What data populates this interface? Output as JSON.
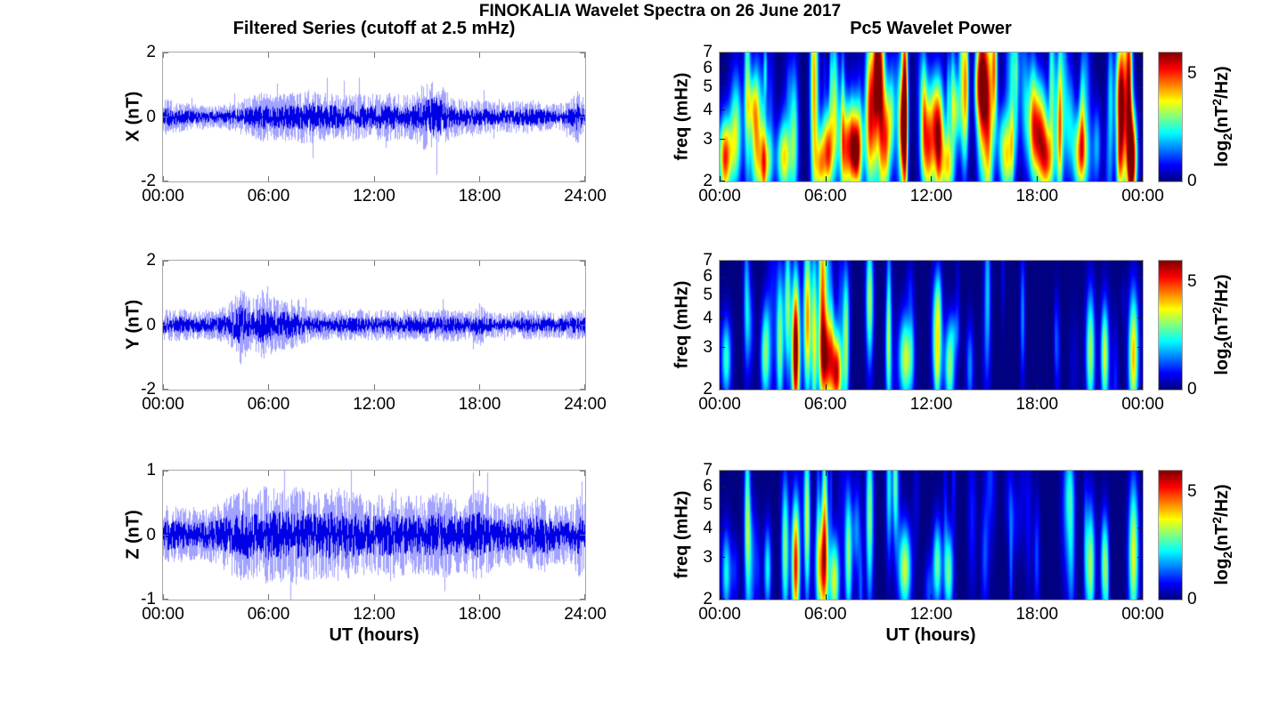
{
  "figure": {
    "title": "FINOKALIA Wavelet Spectra on 26 June 2017",
    "background_color": "#ffffff",
    "axis_box_color": "#a6a6a6",
    "series_color": "#0000e6"
  },
  "chart_data": {
    "left_column": {
      "type": "line",
      "title": "Filtered Series (cutoff at 2.5 mHz)",
      "xlabel": "UT (hours)",
      "x_ticks": [
        "00:00",
        "06:00",
        "12:00",
        "18:00",
        "24:00"
      ],
      "x_range_hours": [
        0,
        24
      ],
      "grid": false,
      "description": "Band-pass filtered ground magnetometer time series (noise-like, zero-mean), envelope amplitude in nT vs UT hour",
      "panels": [
        {
          "ylabel": "X (nT)",
          "ylim": [
            -2,
            2
          ],
          "yticks": [
            "2",
            "0",
            "-2"
          ],
          "noise_seed": 11,
          "envelope": [
            [
              0,
              0.38
            ],
            [
              1,
              0.3
            ],
            [
              2,
              0.24
            ],
            [
              3,
              0.22
            ],
            [
              4,
              0.3
            ],
            [
              5,
              0.42
            ],
            [
              5.7,
              0.5
            ],
            [
              6.5,
              0.46
            ],
            [
              7.5,
              0.5
            ],
            [
              8.5,
              0.56
            ],
            [
              9.3,
              0.5
            ],
            [
              10,
              0.44
            ],
            [
              11,
              0.5
            ],
            [
              12,
              0.46
            ],
            [
              13,
              0.5
            ],
            [
              14,
              0.44
            ],
            [
              15,
              0.72
            ],
            [
              15.6,
              0.78
            ],
            [
              16.2,
              0.5
            ],
            [
              17,
              0.36
            ],
            [
              18,
              0.36
            ],
            [
              19,
              0.3
            ],
            [
              20,
              0.32
            ],
            [
              21,
              0.36
            ],
            [
              22,
              0.26
            ],
            [
              23,
              0.3
            ],
            [
              23.6,
              0.55
            ],
            [
              24,
              0.35
            ]
          ]
        },
        {
          "ylabel": "Y (nT)",
          "ylim": [
            -2,
            2
          ],
          "yticks": [
            "2",
            "0",
            "-2"
          ],
          "noise_seed": 22,
          "envelope": [
            [
              0,
              0.3
            ],
            [
              1,
              0.34
            ],
            [
              2,
              0.28
            ],
            [
              3,
              0.3
            ],
            [
              3.8,
              0.45
            ],
            [
              4.4,
              0.8
            ],
            [
              5,
              0.5
            ],
            [
              5.6,
              0.72
            ],
            [
              6,
              0.62
            ],
            [
              6.6,
              0.5
            ],
            [
              7.2,
              0.55
            ],
            [
              7.8,
              0.4
            ],
            [
              8.5,
              0.32
            ],
            [
              9.5,
              0.3
            ],
            [
              10.5,
              0.32
            ],
            [
              11.5,
              0.3
            ],
            [
              12.5,
              0.32
            ],
            [
              13.5,
              0.3
            ],
            [
              14.5,
              0.34
            ],
            [
              15.5,
              0.32
            ],
            [
              16.5,
              0.34
            ],
            [
              17.5,
              0.28
            ],
            [
              18.1,
              0.5
            ],
            [
              18.4,
              0.28
            ],
            [
              19.5,
              0.24
            ],
            [
              20.5,
              0.3
            ],
            [
              21.5,
              0.3
            ],
            [
              22.5,
              0.26
            ],
            [
              23.3,
              0.3
            ],
            [
              24,
              0.32
            ]
          ]
        },
        {
          "ylabel": "Z (nT)",
          "ylim": [
            -1,
            1
          ],
          "yticks": [
            "1",
            "0",
            "-1"
          ],
          "noise_seed": 33,
          "envelope": [
            [
              0,
              0.3
            ],
            [
              1,
              0.28
            ],
            [
              2,
              0.24
            ],
            [
              3,
              0.3
            ],
            [
              4,
              0.42
            ],
            [
              4.6,
              0.5
            ],
            [
              5.2,
              0.42
            ],
            [
              5.8,
              0.5
            ],
            [
              6.4,
              0.48
            ],
            [
              7,
              0.46
            ],
            [
              7.6,
              0.5
            ],
            [
              8.2,
              0.46
            ],
            [
              9,
              0.44
            ],
            [
              10,
              0.48
            ],
            [
              11,
              0.42
            ],
            [
              12,
              0.4
            ],
            [
              13,
              0.44
            ],
            [
              14,
              0.4
            ],
            [
              15,
              0.4
            ],
            [
              16,
              0.44
            ],
            [
              17,
              0.36
            ],
            [
              18,
              0.46
            ],
            [
              19,
              0.32
            ],
            [
              20,
              0.32
            ],
            [
              21,
              0.36
            ],
            [
              21.6,
              0.4
            ],
            [
              22.4,
              0.3
            ],
            [
              23.2,
              0.3
            ],
            [
              23.7,
              0.42
            ],
            [
              24,
              0.34
            ]
          ]
        }
      ]
    },
    "right_column": {
      "type": "heatmap",
      "title": "Pc5 Wavelet Power",
      "xlabel": "UT (hours)",
      "x_ticks": [
        "00:00",
        "06:00",
        "12:00",
        "18:00",
        "00:00"
      ],
      "x_range_hours": [
        0,
        24
      ],
      "ylabel": "freq (mHz)",
      "y_ticks": [
        "7",
        "6",
        "5",
        "4",
        "3",
        "2"
      ],
      "freq_range_mhz": [
        2,
        7
      ],
      "y_scale": "log",
      "colormap": "jet",
      "colorbar": {
        "range": [
          0,
          6
        ],
        "ticks": [
          {
            "label": "5",
            "value": 5
          },
          {
            "label": "0",
            "value": 0
          }
        ],
        "label_base": "log",
        "label_sub": "2",
        "label_mid": "(nT",
        "label_sup": "2",
        "label_end": "/Hz)"
      },
      "blob_format": "[hour, freq_mHz, peak_log2_power, sigma_hours, sigma_ln_freq]",
      "panels": [
        {
          "component": "X",
          "wisps": {
            "seed": 7,
            "count": 80,
            "imax": 1.5
          },
          "blobs": [
            [
              0.3,
              2.6,
              3.4,
              0.35,
              0.25
            ],
            [
              0.9,
              3.3,
              3.0,
              0.25,
              0.4
            ],
            [
              1.55,
              5.0,
              2.9,
              0.13,
              0.7
            ],
            [
              2.1,
              3.6,
              3.0,
              0.2,
              0.4
            ],
            [
              2.7,
              2.4,
              2.6,
              0.2,
              0.22
            ],
            [
              3.6,
              2.5,
              3.2,
              0.3,
              0.25
            ],
            [
              4.2,
              3.1,
              2.8,
              0.18,
              0.5
            ],
            [
              5.35,
              5.0,
              4.3,
              0.16,
              0.85
            ],
            [
              5.7,
              2.3,
              3.1,
              0.2,
              0.22
            ],
            [
              6.1,
              2.8,
              3.7,
              0.28,
              0.3
            ],
            [
              6.5,
              4.6,
              2.6,
              0.13,
              0.5
            ],
            [
              7.5,
              2.8,
              5.1,
              0.42,
              0.3
            ],
            [
              8.55,
              4.0,
              5.3,
              0.2,
              0.55
            ],
            [
              8.9,
              6.2,
              4.4,
              0.14,
              0.45
            ],
            [
              9.15,
              4.5,
              5.0,
              0.15,
              0.75
            ],
            [
              9.45,
              3.0,
              4.2,
              0.15,
              0.4
            ],
            [
              10.5,
              5.0,
              4.4,
              0.12,
              0.95
            ],
            [
              11.8,
              3.0,
              3.3,
              0.28,
              0.4
            ],
            [
              12.4,
              3.2,
              4.9,
              0.24,
              0.38
            ],
            [
              12.95,
              2.3,
              3.6,
              0.25,
              0.25
            ],
            [
              13.9,
              4.5,
              3.1,
              0.15,
              0.55
            ],
            [
              14.85,
              5.5,
              4.9,
              0.2,
              0.65
            ],
            [
              15.25,
              3.8,
              4.7,
              0.2,
              0.7
            ],
            [
              15.6,
              6.3,
              3.9,
              0.12,
              0.45
            ],
            [
              16.3,
              2.5,
              3.4,
              0.25,
              0.3
            ],
            [
              18.1,
              3.2,
              5.2,
              0.35,
              0.35
            ],
            [
              18.6,
              2.4,
              3.7,
              0.28,
              0.25
            ],
            [
              19.3,
              3.0,
              3.0,
              0.15,
              0.45
            ],
            [
              20.5,
              2.6,
              4.5,
              0.3,
              0.28
            ],
            [
              22.8,
              3.6,
              5.5,
              0.2,
              0.6
            ],
            [
              23.25,
              4.5,
              4.4,
              0.14,
              0.75
            ],
            [
              23.45,
              2.6,
              4.3,
              0.2,
              0.3
            ]
          ]
        },
        {
          "component": "Y",
          "wisps": {
            "seed": 8,
            "count": 30,
            "imax": 0.9
          },
          "blobs": [
            [
              0.35,
              2.7,
              2.6,
              0.2,
              0.28
            ],
            [
              1.5,
              5.0,
              1.8,
              0.12,
              0.5
            ],
            [
              2.55,
              2.7,
              2.7,
              0.18,
              0.3
            ],
            [
              3.4,
              3.2,
              3.1,
              0.15,
              0.5
            ],
            [
              3.85,
              4.6,
              2.5,
              0.12,
              0.5
            ],
            [
              4.3,
              2.9,
              6.2,
              0.17,
              0.5
            ],
            [
              4.95,
              4.0,
              4.3,
              0.15,
              0.55
            ],
            [
              5.35,
              3.4,
              3.5,
              0.12,
              0.6
            ],
            [
              5.8,
              5.3,
              4.0,
              0.15,
              0.75
            ],
            [
              6.1,
              2.7,
              5.3,
              0.3,
              0.33
            ],
            [
              6.65,
              2.3,
              4.0,
              0.2,
              0.25
            ],
            [
              7.15,
              3.1,
              3.1,
              0.13,
              0.5
            ],
            [
              8.5,
              4.8,
              3.3,
              0.15,
              0.45
            ],
            [
              9.6,
              4.2,
              2.0,
              0.1,
              0.6
            ],
            [
              10.55,
              2.7,
              3.5,
              0.28,
              0.3
            ],
            [
              12.35,
              3.0,
              3.3,
              0.2,
              0.35
            ],
            [
              13.05,
              2.5,
              3.1,
              0.2,
              0.3
            ],
            [
              14.2,
              2.5,
              1.6,
              0.15,
              0.3
            ],
            [
              15.2,
              5.5,
              1.9,
              0.13,
              0.55
            ],
            [
              17.2,
              4.1,
              1.6,
              0.1,
              0.45
            ],
            [
              19.2,
              3.0,
              1.0,
              0.1,
              0.35
            ],
            [
              21.05,
              2.9,
              3.3,
              0.18,
              0.42
            ],
            [
              21.85,
              2.8,
              3.1,
              0.15,
              0.35
            ],
            [
              23.5,
              2.9,
              3.9,
              0.2,
              0.42
            ]
          ]
        },
        {
          "component": "Z",
          "wisps": {
            "seed": 9,
            "count": 30,
            "imax": 0.9
          },
          "blobs": [
            [
              0.35,
              2.6,
              2.3,
              0.18,
              0.3
            ],
            [
              1.55,
              5.0,
              2.7,
              0.12,
              0.55
            ],
            [
              2.7,
              2.7,
              2.3,
              0.15,
              0.3
            ],
            [
              3.7,
              3.3,
              3.1,
              0.15,
              0.5
            ],
            [
              4.3,
              2.8,
              5.3,
              0.16,
              0.45
            ],
            [
              4.95,
              4.2,
              3.3,
              0.12,
              0.55
            ],
            [
              5.8,
              2.7,
              4.3,
              0.25,
              0.38
            ],
            [
              5.95,
              4.6,
              3.1,
              0.12,
              0.6
            ],
            [
              6.5,
              2.4,
              3.5,
              0.2,
              0.3
            ],
            [
              7.3,
              3.1,
              3.1,
              0.15,
              0.45
            ],
            [
              8.5,
              4.6,
              3.1,
              0.15,
              0.6
            ],
            [
              9.6,
              6.0,
              2.3,
              0.12,
              0.5
            ],
            [
              9.95,
              6.5,
              2.1,
              0.1,
              0.4
            ],
            [
              10.5,
              2.7,
              3.5,
              0.25,
              0.3
            ],
            [
              12.35,
              2.8,
              2.9,
              0.18,
              0.3
            ],
            [
              13.0,
              2.6,
              2.9,
              0.18,
              0.3
            ],
            [
              15.05,
              3.0,
              1.2,
              0.15,
              0.4
            ],
            [
              18.0,
              3.0,
              1.2,
              0.12,
              0.4
            ],
            [
              21.05,
              2.8,
              3.3,
              0.18,
              0.42
            ],
            [
              21.85,
              2.8,
              3.1,
              0.15,
              0.35
            ],
            [
              23.5,
              3.1,
              3.7,
              0.2,
              0.5
            ]
          ]
        }
      ]
    }
  }
}
